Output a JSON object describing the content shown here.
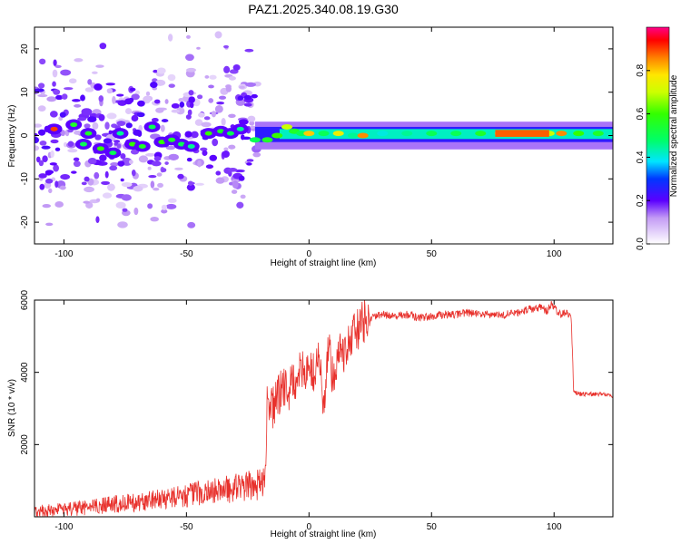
{
  "title": "PAZ1.2025.340.08.19.G30",
  "chart_data": [
    {
      "type": "heatmap",
      "name": "spectrogram",
      "xlabel": "Height of straight line (km)",
      "ylabel": "Frequency (Hz)",
      "xlim": [
        -112,
        124
      ],
      "ylim": [
        -25,
        25
      ],
      "xticks": [
        -100,
        -50,
        0,
        50,
        100
      ],
      "yticks": [
        -20,
        -10,
        0,
        10,
        20
      ],
      "colorbar": {
        "label": "Normalized spectral amplitude",
        "range": [
          0,
          1
        ],
        "ticks": [
          0.0,
          0.2,
          0.4,
          0.6,
          0.8
        ]
      },
      "blobs": [
        {
          "x": -104,
          "f": 1.5,
          "a": 0.9
        },
        {
          "x": -96,
          "f": 2.5,
          "a": 0.55
        },
        {
          "x": -92,
          "f": -2,
          "a": 0.5
        },
        {
          "x": -90,
          "f": 0.5,
          "a": 0.55
        },
        {
          "x": -85,
          "f": -3,
          "a": 0.6
        },
        {
          "x": -80,
          "f": -4,
          "a": 0.5
        },
        {
          "x": -77,
          "f": 0.5,
          "a": 0.45
        },
        {
          "x": -72,
          "f": -2,
          "a": 0.6
        },
        {
          "x": -68,
          "f": -2.5,
          "a": 0.55
        },
        {
          "x": -64,
          "f": 2,
          "a": 0.5
        },
        {
          "x": -60,
          "f": -1.5,
          "a": 0.6
        },
        {
          "x": -56,
          "f": -1,
          "a": 0.55
        },
        {
          "x": -52,
          "f": -2,
          "a": 0.5
        },
        {
          "x": -48,
          "f": -2.5,
          "a": 0.45
        },
        {
          "x": -41,
          "f": 0.5,
          "a": 0.6
        },
        {
          "x": -36,
          "f": 1,
          "a": 0.55
        },
        {
          "x": -32,
          "f": 0.5,
          "a": 0.5
        },
        {
          "x": -28,
          "f": 1.5,
          "a": 0.45
        }
      ],
      "ridge": [
        {
          "x": -22,
          "f": -1,
          "a": 0.5
        },
        {
          "x": -17,
          "f": -1,
          "a": 0.55
        },
        {
          "x": -13,
          "f": 0,
          "a": 0.6
        },
        {
          "x": -9,
          "f": 2,
          "a": 0.7
        },
        {
          "x": -6,
          "f": 1,
          "a": 0.55
        },
        {
          "x": -3,
          "f": 0.5,
          "a": 0.5
        },
        {
          "x": 0,
          "f": 0.5,
          "a": 0.8
        },
        {
          "x": 6,
          "f": 0.5,
          "a": 0.5
        },
        {
          "x": 12,
          "f": 0.5,
          "a": 0.75
        },
        {
          "x": 18,
          "f": 0,
          "a": 0.45
        },
        {
          "x": 22,
          "f": 0,
          "a": 0.85
        },
        {
          "x": 30,
          "f": 0.5,
          "a": 0.4
        },
        {
          "x": 40,
          "f": 0.5,
          "a": 0.45
        },
        {
          "x": 50,
          "f": 0.5,
          "a": 0.5
        },
        {
          "x": 60,
          "f": 0.5,
          "a": 0.5
        },
        {
          "x": 70,
          "f": 0.5,
          "a": 0.55
        },
        {
          "x": 78,
          "f": 0.5,
          "a": 0.8
        },
        {
          "x": 85,
          "f": 0.5,
          "a": 0.85
        },
        {
          "x": 92,
          "f": 0.5,
          "a": 0.85
        },
        {
          "x": 98,
          "f": 0.5,
          "a": 0.7
        },
        {
          "x": 103,
          "f": 0.5,
          "a": 0.85
        },
        {
          "x": 110,
          "f": 0.5,
          "a": 0.6
        },
        {
          "x": 118,
          "f": 0.5,
          "a": 0.55
        }
      ]
    },
    {
      "type": "line",
      "name": "snr",
      "xlabel": "Height of straight line (km)",
      "ylabel": "SNR (10 * v/v)",
      "xlim": [
        -112,
        124
      ],
      "ylim": [
        0,
        6000
      ],
      "xticks": [
        -100,
        -50,
        0,
        50,
        100
      ],
      "yticks": [
        2000,
        4000,
        6000
      ],
      "color": "#e8312c",
      "series": {
        "x": [
          -112,
          -100,
          -90,
          -80,
          -70,
          -60,
          -50,
          -40,
          -30,
          -25,
          -20,
          -18,
          -17,
          -15,
          -12,
          -10,
          -8,
          -5,
          -3,
          0,
          2,
          4,
          6,
          8,
          10,
          12,
          14,
          16,
          18,
          20,
          22,
          25,
          28,
          30,
          35,
          40,
          45,
          50,
          55,
          60,
          65,
          70,
          75,
          80,
          85,
          90,
          95,
          97,
          99,
          101,
          103,
          105,
          107,
          108,
          110,
          115,
          120,
          124
        ],
        "y": [
          150,
          200,
          250,
          350,
          400,
          500,
          600,
          700,
          800,
          850,
          900,
          1200,
          3200,
          3000,
          3400,
          3600,
          3500,
          3900,
          4000,
          4200,
          3900,
          4500,
          3000,
          4700,
          3600,
          4800,
          4500,
          4900,
          5000,
          5200,
          5400,
          5500,
          5550,
          5600,
          5550,
          5600,
          5500,
          5550,
          5600,
          5600,
          5650,
          5600,
          5600,
          5600,
          5650,
          5750,
          5800,
          5700,
          5900,
          5700,
          5600,
          5650,
          5500,
          3450,
          3400,
          3400,
          3400,
          3350
        ]
      }
    }
  ]
}
